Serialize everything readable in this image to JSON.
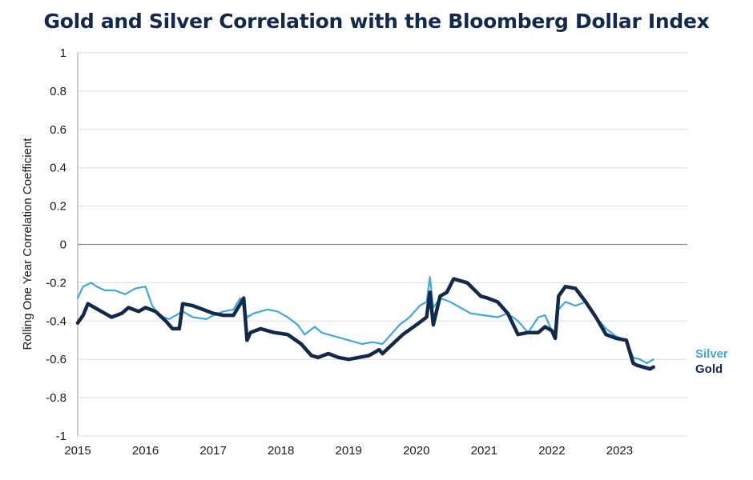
{
  "chart_data": {
    "type": "line",
    "title": "Gold and Silver Correlation with the Bloomberg Dollar Index",
    "ylabel": "Rolling One Year Correlation Coefficient",
    "xlabel": "",
    "ylim": [
      -1,
      1
    ],
    "xlim": [
      2015,
      2024
    ],
    "y_ticks": [
      1,
      0.8,
      0.6,
      0.4,
      0.2,
      0,
      -0.2,
      -0.4,
      -0.6,
      -0.8,
      -1
    ],
    "y_tick_labels": [
      "1",
      "0.8",
      "0.6",
      "0.4",
      "0.2",
      "0",
      "-0.2",
      "-0.4",
      "-0.6",
      "-0.8",
      "-1"
    ],
    "x_ticks": [
      2015,
      2016,
      2017,
      2018,
      2019,
      2020,
      2021,
      2022,
      2023
    ],
    "x_tick_labels": [
      "2015",
      "2016",
      "2017",
      "2018",
      "2019",
      "2020",
      "2021",
      "2022",
      "2023"
    ],
    "grid": "horizontal",
    "legend": "right-end inline labels",
    "series": [
      {
        "name": "Silver",
        "color": "#3ea8dc",
        "x": [
          2015.0,
          2015.08,
          2015.2,
          2015.28,
          2015.4,
          2015.55,
          2015.7,
          2015.85,
          2016.0,
          2016.1,
          2016.2,
          2016.35,
          2016.5,
          2016.55,
          2016.7,
          2016.9,
          2017.0,
          2017.15,
          2017.3,
          2017.4,
          2017.45,
          2017.5,
          2017.6,
          2017.8,
          2017.95,
          2018.1,
          2018.25,
          2018.35,
          2018.5,
          2018.6,
          2018.8,
          2019.0,
          2019.2,
          2019.35,
          2019.5,
          2019.6,
          2019.75,
          2019.9,
          2020.05,
          2020.15,
          2020.2,
          2020.25,
          2020.35,
          2020.5,
          2020.65,
          2020.8,
          2021.0,
          2021.2,
          2021.35,
          2021.5,
          2021.65,
          2021.8,
          2021.9,
          2022.0,
          2022.05,
          2022.1,
          2022.2,
          2022.35,
          2022.5,
          2022.65,
          2022.8,
          2022.95,
          2023.1,
          2023.2,
          2023.3,
          2023.4,
          2023.5
        ],
        "y": [
          -0.28,
          -0.22,
          -0.2,
          -0.22,
          -0.24,
          -0.24,
          -0.26,
          -0.23,
          -0.22,
          -0.32,
          -0.37,
          -0.39,
          -0.36,
          -0.35,
          -0.38,
          -0.39,
          -0.37,
          -0.35,
          -0.34,
          -0.28,
          -0.33,
          -0.38,
          -0.36,
          -0.34,
          -0.35,
          -0.38,
          -0.42,
          -0.47,
          -0.43,
          -0.46,
          -0.48,
          -0.5,
          -0.52,
          -0.51,
          -0.52,
          -0.48,
          -0.42,
          -0.38,
          -0.32,
          -0.3,
          -0.17,
          -0.33,
          -0.28,
          -0.3,
          -0.33,
          -0.36,
          -0.37,
          -0.38,
          -0.36,
          -0.4,
          -0.46,
          -0.38,
          -0.37,
          -0.45,
          -0.47,
          -0.34,
          -0.3,
          -0.32,
          -0.3,
          -0.38,
          -0.44,
          -0.48,
          -0.5,
          -0.59,
          -0.6,
          -0.62,
          -0.6
        ]
      },
      {
        "name": "Gold",
        "color": "#13294b",
        "x": [
          2015.0,
          2015.08,
          2015.15,
          2015.25,
          2015.35,
          2015.5,
          2015.65,
          2015.75,
          2015.9,
          2016.0,
          2016.15,
          2016.3,
          2016.4,
          2016.5,
          2016.55,
          2016.7,
          2016.85,
          2017.0,
          2017.15,
          2017.3,
          2017.45,
          2017.5,
          2017.55,
          2017.7,
          2017.9,
          2018.1,
          2018.3,
          2018.45,
          2018.55,
          2018.7,
          2018.85,
          2019.0,
          2019.15,
          2019.3,
          2019.45,
          2019.5,
          2019.65,
          2019.8,
          2020.0,
          2020.15,
          2020.2,
          2020.25,
          2020.35,
          2020.45,
          2020.55,
          2020.75,
          2020.95,
          2021.05,
          2021.2,
          2021.35,
          2021.5,
          2021.65,
          2021.8,
          2021.9,
          2022.0,
          2022.05,
          2022.1,
          2022.2,
          2022.35,
          2022.5,
          2022.65,
          2022.8,
          2022.95,
          2023.1,
          2023.2,
          2023.25,
          2023.35,
          2023.45,
          2023.5
        ],
        "y": [
          -0.41,
          -0.37,
          -0.31,
          -0.33,
          -0.35,
          -0.38,
          -0.36,
          -0.33,
          -0.35,
          -0.33,
          -0.35,
          -0.4,
          -0.44,
          -0.44,
          -0.31,
          -0.32,
          -0.34,
          -0.36,
          -0.37,
          -0.37,
          -0.28,
          -0.5,
          -0.46,
          -0.44,
          -0.46,
          -0.47,
          -0.52,
          -0.58,
          -0.59,
          -0.57,
          -0.59,
          -0.6,
          -0.59,
          -0.58,
          -0.55,
          -0.57,
          -0.52,
          -0.47,
          -0.42,
          -0.38,
          -0.25,
          -0.42,
          -0.27,
          -0.25,
          -0.18,
          -0.2,
          -0.27,
          -0.28,
          -0.3,
          -0.36,
          -0.47,
          -0.46,
          -0.46,
          -0.43,
          -0.45,
          -0.49,
          -0.27,
          -0.22,
          -0.23,
          -0.3,
          -0.38,
          -0.47,
          -0.49,
          -0.5,
          -0.62,
          -0.63,
          -0.64,
          -0.65,
          -0.64
        ]
      }
    ]
  }
}
